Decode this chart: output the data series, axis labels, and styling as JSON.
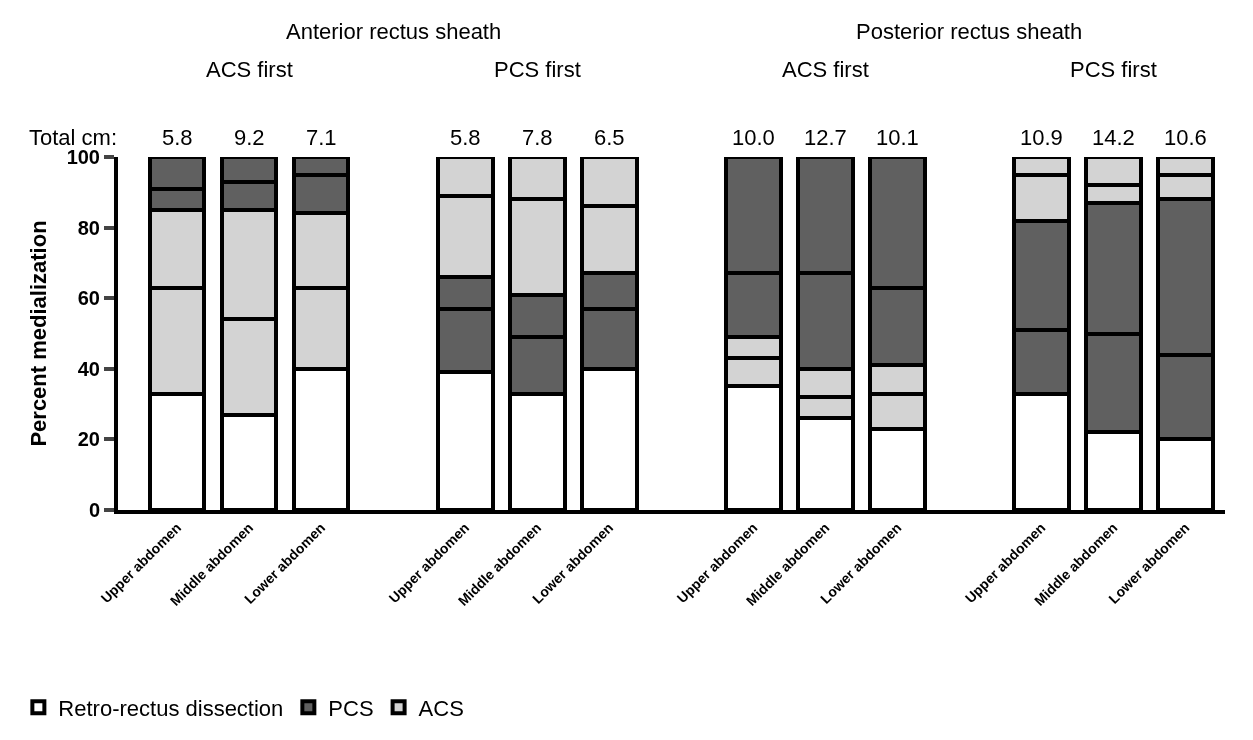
{
  "chart_data": {
    "type": "bar",
    "stacked": true,
    "categories": [
      "Upper abdomen",
      "Middle abdomen",
      "Lower abdomen",
      null,
      "Upper abdomen",
      "Middle abdomen",
      "Lower abdomen",
      null,
      "Upper abdomen",
      "Middle abdomen",
      "Lower abdomen",
      null,
      "Upper abdomen",
      "Middle abdomen",
      "Lower abdomen"
    ],
    "series": [
      {
        "name": "Retro-rectus dissection",
        "color": "#ffffff",
        "values": [
          33,
          27,
          40,
          null,
          39,
          33,
          40,
          null,
          35,
          26,
          23,
          null,
          33,
          22,
          20
        ]
      },
      {
        "color": "#d3d3d3",
        "values": [
          30,
          27,
          23,
          null,
          null,
          null,
          null,
          null,
          8,
          6,
          10,
          null,
          null,
          null,
          null
        ]
      },
      {
        "color": "#d3d3d3",
        "values": [
          22,
          31,
          21,
          null,
          null,
          null,
          null,
          null,
          6,
          8,
          8,
          null,
          null,
          null,
          null
        ]
      },
      {
        "name": "PCS",
        "color": "#606060",
        "values": [
          6,
          8,
          11,
          null,
          18,
          16,
          17,
          null,
          18,
          27,
          22,
          null,
          18,
          28,
          24
        ]
      },
      {
        "color": "#606060",
        "values": [
          9,
          7,
          5,
          null,
          9,
          12,
          10,
          null,
          33,
          33,
          37,
          null,
          31,
          37,
          44
        ]
      },
      {
        "name": "ACS",
        "color": "#d3d3d3",
        "values": [
          null,
          null,
          null,
          null,
          23,
          27,
          19,
          null,
          null,
          null,
          null,
          null,
          13,
          5,
          7
        ]
      },
      {
        "color": "#d3d3d3",
        "values": [
          null,
          null,
          null,
          null,
          11,
          12,
          14,
          null,
          null,
          null,
          null,
          null,
          5,
          8,
          5
        ]
      }
    ],
    "annotations": [
      "Anterior rectus sheath",
      "Posterior rectus sheath",
      "ACS first",
      "PCS first",
      "ACS first",
      "PCS first",
      "Total cm:",
      "5.8",
      "9.2",
      "7.1",
      "5.8",
      "7.8",
      "6.5",
      "10.0",
      "12.7",
      "10.1",
      "10.9",
      "14.2",
      "10.6"
    ],
    "ylabel": "Percent medialization",
    "ylim": [
      0,
      100
    ],
    "yticks": [
      0,
      20,
      40,
      60,
      80,
      100
    ],
    "legend": "bottom left"
  }
}
